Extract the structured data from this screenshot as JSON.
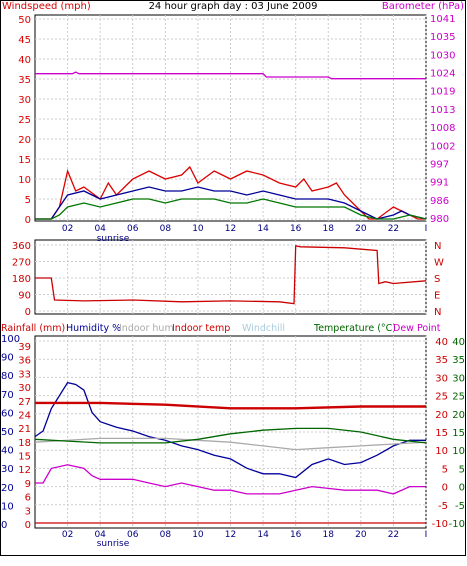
{
  "header": {
    "left_label": "Windspeed (mph)",
    "title": "24 hour graph day : 03 June 2009",
    "right_label": "Barometer (hPa)"
  },
  "colors": {
    "wind_red": "#dd0000",
    "wind_blue": "#000099",
    "wind_green": "#007700",
    "baro": "#cc00cc",
    "wind_dir": "#cc0000",
    "humidity": "#000099",
    "indoor_hum": "#aaaaaa",
    "indoor_temp": "#cc0000",
    "windchill": "#aaccdd",
    "temperature": "#006600",
    "dewpoint": "#cc00cc",
    "rain": "#cc0000",
    "grid": "#cccccc"
  },
  "x_ticks": [
    "02",
    "04",
    "06",
    "08",
    "10",
    "12",
    "14",
    "16",
    "18",
    "20",
    "22",
    "I"
  ],
  "sunrise_label": "sunrise",
  "wind_panel": {
    "left_ticks": [
      "0",
      "5",
      "10",
      "15",
      "20",
      "25",
      "30",
      "35",
      "40",
      "45",
      "50"
    ],
    "right_ticks": [
      "980",
      "986",
      "991",
      "997",
      "1002",
      "1008",
      "1013",
      "1019",
      "1024",
      "1030",
      "1035",
      "1041"
    ]
  },
  "dir_panel": {
    "left_ticks": [
      "0",
      "90",
      "180",
      "270",
      "360"
    ],
    "right_ticks": [
      "N",
      "E",
      "S",
      "W",
      "N"
    ]
  },
  "legend": {
    "rainfall": "Rainfall (mm)",
    "humidity": "Humidity %",
    "indoor_hum": "Indoor hum",
    "indoor_temp": "Indoor temp",
    "windchill": "Windchill",
    "temperature": "Temperature (°C)",
    "dewpoint": "Dew Point"
  },
  "bottom_panel": {
    "hum_ticks": [
      "0",
      "10",
      "20",
      "30",
      "40",
      "50",
      "60",
      "70",
      "80",
      "90",
      "100"
    ],
    "rain_ticks": [
      "0",
      "3",
      "6",
      "9",
      "12",
      "15",
      "18",
      "21",
      "24",
      "27",
      "30",
      "33",
      "36",
      "39"
    ],
    "temp_ticks_a": [
      "-10",
      "-5",
      "0",
      "5",
      "10",
      "15",
      "20",
      "25",
      "30",
      "35",
      "40"
    ],
    "temp_ticks_b": [
      "-10",
      "-5",
      "0",
      "5",
      "10",
      "15",
      "20",
      "25",
      "30",
      "35",
      "40"
    ]
  },
  "chart_data": [
    {
      "type": "line",
      "title": "24 hour graph day : 03 June 2009",
      "xlabel": "",
      "ylabel": "Windspeed (mph)",
      "xlim": [
        0,
        24
      ],
      "ylim": [
        0,
        50
      ],
      "y2label": "Barometer (hPa)",
      "y2lim": [
        980,
        1041
      ],
      "series": [
        {
          "name": "",
          "axis": "left",
          "color": "#dd0000",
          "x": [
            0,
            1,
            1.5,
            2,
            2.5,
            3,
            4,
            4.5,
            5,
            6,
            7,
            8,
            9,
            9.5,
            10,
            11,
            12,
            13,
            14,
            15,
            16,
            16.5,
            17,
            18,
            18.5,
            19,
            20,
            20.5,
            21,
            22,
            22.5,
            23,
            23.5,
            24
          ],
          "y": [
            0,
            0,
            3,
            12,
            7,
            8,
            5,
            9,
            6,
            10,
            12,
            10,
            11,
            13,
            9,
            12,
            10,
            12,
            11,
            9,
            8,
            10,
            7,
            8,
            9,
            6,
            2,
            0,
            0,
            3,
            2,
            1,
            0,
            0
          ]
        },
        {
          "name": "",
          "axis": "left",
          "color": "#000099",
          "x": [
            0,
            1,
            1.5,
            2,
            3,
            4,
            5,
            6,
            7,
            8,
            9,
            10,
            11,
            12,
            13,
            14,
            15,
            16,
            17,
            18,
            19,
            20,
            21,
            22,
            22.5,
            23,
            24
          ],
          "y": [
            0,
            0,
            3,
            6,
            7,
            5,
            6,
            7,
            8,
            7,
            7,
            8,
            7,
            7,
            6,
            7,
            6,
            5,
            5,
            5,
            4,
            2,
            0,
            1,
            2,
            1,
            0
          ]
        },
        {
          "name": "",
          "axis": "left",
          "color": "#007700",
          "x": [
            0,
            1,
            1.5,
            2,
            3,
            4,
            5,
            6,
            7,
            8,
            9,
            10,
            11,
            12,
            13,
            14,
            15,
            16,
            17,
            18,
            19,
            20,
            21,
            22,
            23,
            24
          ],
          "y": [
            0,
            0,
            1,
            3,
            4,
            3,
            4,
            5,
            5,
            4,
            5,
            5,
            5,
            4,
            4,
            5,
            4,
            3,
            3,
            3,
            3,
            1,
            0,
            0,
            1,
            0
          ]
        },
        {
          "name": "",
          "axis": "right",
          "color": "#cc00cc",
          "x": [
            0,
            2.3,
            2.5,
            2.7,
            14,
            14.2,
            18,
            18.2,
            24
          ],
          "y": [
            1024,
            1024,
            1024.5,
            1024,
            1024,
            1023,
            1023,
            1022.5,
            1022.5
          ]
        }
      ]
    },
    {
      "type": "line",
      "xlim": [
        0,
        24
      ],
      "ylim": [
        0,
        360
      ],
      "series": [
        {
          "name": "",
          "color": "#cc0000",
          "x": [
            0,
            1,
            1.2,
            3,
            6,
            9,
            12,
            15,
            15.9,
            16,
            16.3,
            19,
            21,
            21.1,
            21.5,
            22,
            24
          ],
          "y": [
            180,
            180,
            60,
            55,
            60,
            50,
            55,
            50,
            40,
            355,
            350,
            345,
            330,
            150,
            160,
            150,
            165
          ]
        }
      ]
    },
    {
      "type": "line",
      "xlim": [
        0,
        24
      ],
      "ylim": [
        0,
        100
      ],
      "series": [
        {
          "name": "Humidity %",
          "color": "#000099",
          "x": [
            0,
            0.5,
            1,
            2,
            2.5,
            3,
            3.5,
            4,
            5,
            6,
            7,
            8,
            9,
            10,
            11,
            12,
            13,
            14,
            15,
            16,
            17,
            18,
            19,
            20,
            21,
            22,
            23,
            24
          ],
          "y": [
            47,
            50,
            62,
            76,
            75,
            72,
            60,
            55,
            52,
            50,
            47,
            45,
            42,
            40,
            37,
            35,
            30,
            27,
            27,
            25,
            32,
            35,
            32,
            33,
            37,
            42,
            45,
            45
          ]
        },
        {
          "name": "Indoor hum",
          "color": "#aaaaaa",
          "x": [
            0,
            2,
            4,
            6,
            8,
            10,
            12,
            14,
            16,
            18,
            20,
            22,
            24
          ],
          "y": [
            44,
            45,
            46,
            46,
            46,
            45,
            44,
            42,
            40,
            41,
            42,
            43,
            44
          ]
        }
      ]
    },
    {
      "type": "line",
      "xlim": [
        0,
        24
      ],
      "ylim": [
        -10,
        40
      ],
      "series": [
        {
          "name": "Indoor temp",
          "color": "#cc0000",
          "x": [
            0,
            4,
            8,
            12,
            16,
            20,
            24
          ],
          "y": [
            23,
            23,
            22.5,
            21.5,
            21.5,
            22,
            22
          ]
        },
        {
          "name": "Temperature (°C)",
          "color": "#006600",
          "x": [
            0,
            2,
            4,
            6,
            8,
            10,
            12,
            14,
            16,
            18,
            20,
            22,
            24
          ],
          "y": [
            13,
            12.5,
            12,
            12,
            12,
            13,
            14.5,
            15.5,
            16,
            16,
            15,
            13,
            12
          ]
        },
        {
          "name": "Dew Point",
          "color": "#cc00cc",
          "x": [
            0,
            0.5,
            1,
            2,
            3,
            3.5,
            4,
            5,
            6,
            7,
            8,
            9,
            10,
            11,
            12,
            13,
            14,
            15,
            16,
            17,
            18,
            19,
            20,
            21,
            22,
            23,
            24
          ],
          "y": [
            1,
            1,
            5,
            6,
            5,
            3,
            2,
            2,
            2,
            1,
            0,
            1,
            0,
            -1,
            -1,
            -2,
            -2,
            -2,
            -1,
            0,
            -0.5,
            -1,
            -1,
            -1,
            -2,
            0,
            0
          ]
        },
        {
          "name": "Rainfall (mm)",
          "color": "#cc0000",
          "x": [
            0,
            24
          ],
          "y": [
            -10,
            -10
          ]
        }
      ]
    }
  ]
}
